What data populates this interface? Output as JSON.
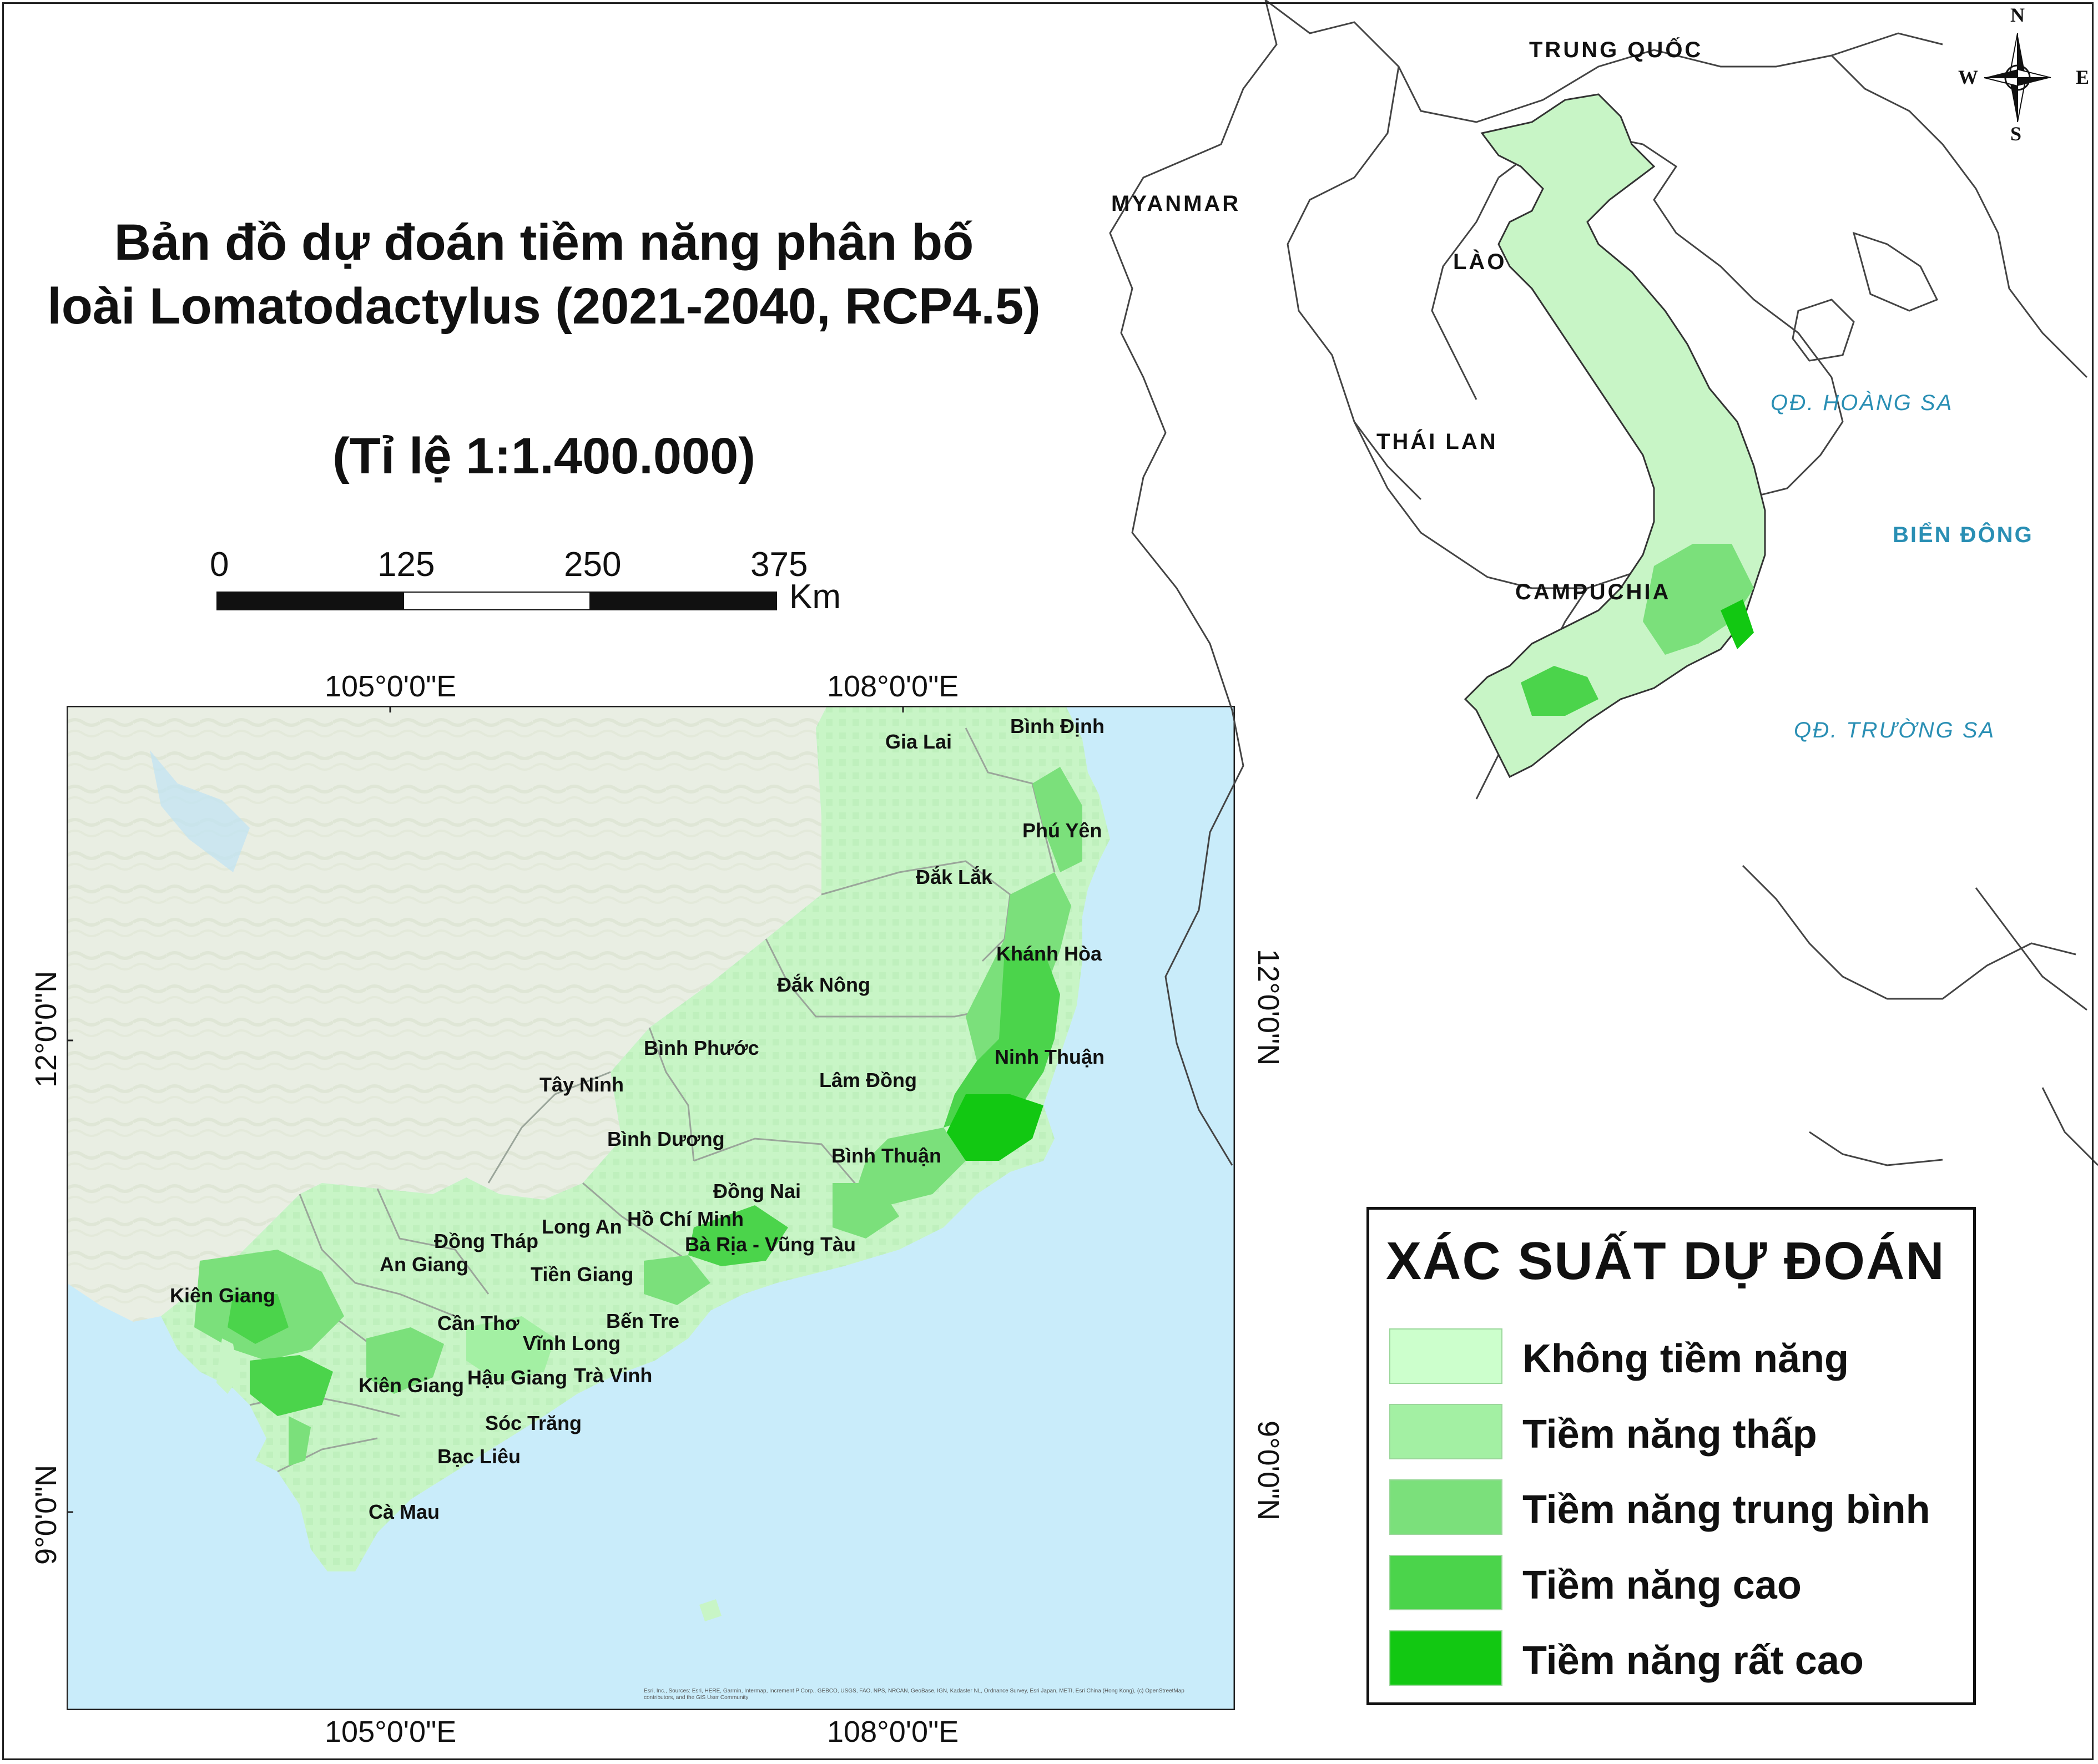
{
  "title_line1": "Bản đồ dự đoán tiềm năng phân bố",
  "title_line2": "loài Lomatodactylus (2021-2040, RCP4.5)",
  "scale_ratio": "(Tỉ lệ 1:1.400.000)",
  "scalebar": {
    "ticks": [
      "0",
      "125",
      "250",
      "375"
    ],
    "unit": "Km"
  },
  "grid_labels": {
    "lon_left": "105°0'0\"E",
    "lon_right": "108°0'0\"E",
    "lat_top": "12°0'0\"N",
    "lat_bottom": "9°0'0\"N"
  },
  "inset_labels": {
    "countries": [
      "TRUNG QUỐC",
      "MYANMAR",
      "LÀO",
      "THÁI LAN",
      "CAMPUCHIA"
    ],
    "seas": [
      "QĐ. HOÀNG SA",
      "BIỂN ĐÔNG",
      "QĐ. TRƯỜNG SA"
    ]
  },
  "compass": {
    "n": "N",
    "s": "S",
    "e": "E",
    "w": "W"
  },
  "provinces": [
    "Gia Lai",
    "Bình Định",
    "Phú Yên",
    "Đắk Lắk",
    "Khánh Hòa",
    "Đắk Nông",
    "Bình Phước",
    "Ninh Thuận",
    "Lâm Đồng",
    "Tây Ninh",
    "Bình Dương",
    "Bình Thuận",
    "Đồng Nai",
    "Đồng Tháp",
    "Long An",
    "Hồ Chí Minh",
    "Bà Rịa - Vũng Tàu",
    "An Giang",
    "Tiền Giang",
    "Kiên Giang",
    "Cần Thơ",
    "Bến Tre",
    "Vĩnh Long",
    "Kiên Giang",
    "Hậu Giang",
    "Trà Vinh",
    "Sóc Trăng",
    "Bạc Liêu",
    "Cà Mau"
  ],
  "legend": {
    "title": "XÁC SUẤT DỰ ĐOÁN",
    "items": [
      {
        "label": "Không tiềm năng",
        "color": "#ccffcc"
      },
      {
        "label": "Tiềm năng thấp",
        "color": "#a3f0a3"
      },
      {
        "label": "Tiềm năng trung bình",
        "color": "#7be07b"
      },
      {
        "label": "Tiềm năng cao",
        "color": "#4bd44b"
      },
      {
        "label": "Tiềm năng rất cao",
        "color": "#12c812"
      }
    ]
  },
  "colors": {
    "sea": "#c9ecfa",
    "land_gray": "#e8ede3",
    "vietnam_base": "#c8f5c6"
  },
  "attribution": "Esri, Inc., Sources: Esri, HERE, Garmin, Intermap, Increment P Corp., GEBCO, USGS, FAO, NPS, NRCAN, GeoBase, IGN, Kadaster NL, Ordnance Survey, Esri Japan, METI, Esri China (Hong Kong), (c) OpenStreetMap contributors, and the GIS User Community"
}
